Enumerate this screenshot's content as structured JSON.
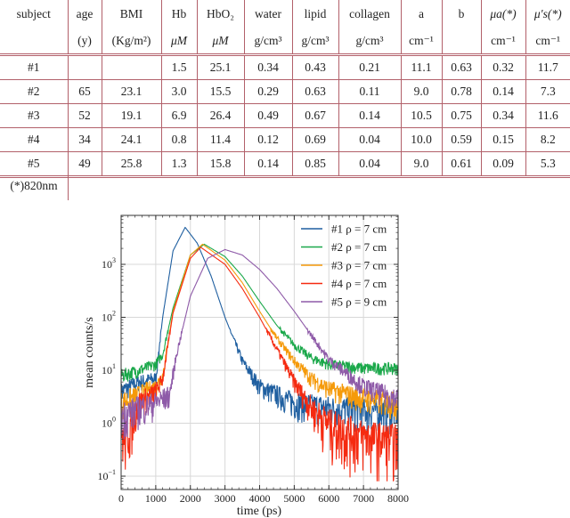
{
  "table": {
    "columns": [
      {
        "name": "subject",
        "unit": ""
      },
      {
        "name": "age",
        "unit": "(y)"
      },
      {
        "name": "BMI",
        "unit": "(Kg/m²)"
      },
      {
        "name": "Hb",
        "unit": "μM"
      },
      {
        "name": "HbO₂",
        "unit": "μM"
      },
      {
        "name": "water",
        "unit": "g/cm³"
      },
      {
        "name": "lipid",
        "unit": "g/cm³"
      },
      {
        "name": "collagen",
        "unit": "g/cm³"
      },
      {
        "name": "a",
        "unit": "cm⁻¹"
      },
      {
        "name": "b",
        "unit": ""
      },
      {
        "name": "μa(*)",
        "unit": "cm⁻¹"
      },
      {
        "name": "μ's(*)",
        "unit": "cm⁻¹"
      }
    ],
    "rows": [
      [
        "#1",
        "",
        "",
        "1.5",
        "25.1",
        "0.34",
        "0.43",
        "0.21",
        "11.1",
        "0.63",
        "0.32",
        "11.7"
      ],
      [
        "#2",
        "65",
        "23.1",
        "3.0",
        "15.5",
        "0.29",
        "0.63",
        "0.11",
        "9.0",
        "0.78",
        "0.14",
        "7.3"
      ],
      [
        "#3",
        "52",
        "19.1",
        "6.9",
        "26.4",
        "0.49",
        "0.67",
        "0.14",
        "10.5",
        "0.75",
        "0.34",
        "11.6"
      ],
      [
        "#4",
        "34",
        "24.1",
        "0.8",
        "11.4",
        "0.12",
        "0.69",
        "0.04",
        "10.0",
        "0.59",
        "0.15",
        "8.2"
      ],
      [
        "#5",
        "49",
        "25.8",
        "1.3",
        "15.8",
        "0.14",
        "0.85",
        "0.04",
        "9.0",
        "0.61",
        "0.09",
        "5.3"
      ]
    ],
    "footnote": "(*)820nm"
  },
  "chart_data": {
    "type": "line",
    "title": "",
    "xlabel": "time (ps)",
    "ylabel": "mean counts/s",
    "xlim": [
      0,
      8000
    ],
    "ylim": [
      0.05,
      8500
    ],
    "yscale": "log",
    "grid": true,
    "legend_position": "upper right",
    "x_ticks": [
      "0",
      "1000",
      "2000",
      "3000",
      "4000",
      "5000",
      "6000",
      "7000",
      "8000"
    ],
    "y_ticks": [
      "10^-1",
      "10^0",
      "10^1",
      "10^2",
      "10^3"
    ],
    "series": [
      {
        "name": "#1 ρ = 7 cm",
        "color": "#1f5fa0",
        "x": [
          0,
          500,
          1000,
          1200,
          1500,
          1850,
          2200,
          2600,
          3000,
          3500,
          4000,
          5000,
          6000,
          7000,
          8000
        ],
        "y": [
          4,
          6,
          7,
          100,
          1800,
          5000,
          2500,
          600,
          100,
          15,
          5,
          2.5,
          2,
          1.8,
          1.8
        ]
      },
      {
        "name": "#2 ρ = 7 cm",
        "color": "#1aa84a",
        "x": [
          0,
          500,
          1000,
          1200,
          1500,
          2000,
          2400,
          3000,
          3500,
          4000,
          4500,
          5000,
          5500,
          6000,
          7000,
          8000
        ],
        "y": [
          8,
          10,
          13,
          20,
          150,
          1500,
          2400,
          1400,
          600,
          200,
          70,
          30,
          17,
          13,
          11,
          11
        ]
      },
      {
        "name": "#3 ρ = 7 cm",
        "color": "#f59a0a",
        "x": [
          0,
          500,
          1000,
          1200,
          1500,
          2000,
          2350,
          3000,
          3500,
          4000,
          4500,
          5000,
          5500,
          6000,
          7000,
          8000
        ],
        "y": [
          2.5,
          3.5,
          5,
          8,
          130,
          1500,
          2400,
          1200,
          450,
          130,
          40,
          15,
          7,
          4.5,
          3,
          2.5
        ]
      },
      {
        "name": "#4 ρ = 7 cm",
        "color": "#f52a10",
        "x": [
          0,
          100,
          500,
          1000,
          1200,
          1500,
          2000,
          2300,
          3000,
          3500,
          4000,
          4500,
          5000,
          5500,
          6000,
          7000,
          8000
        ],
        "y": [
          0.7,
          0.5,
          2.5,
          4,
          7,
          120,
          1300,
          2100,
          1000,
          350,
          100,
          25,
          6,
          2,
          1,
          0.6,
          0.5
        ]
      },
      {
        "name": "#5 ρ = 9 cm",
        "color": "#8e5aa8",
        "x": [
          0,
          500,
          1000,
          1400,
          1600,
          2000,
          2500,
          3000,
          3500,
          4000,
          4500,
          5000,
          5500,
          6000,
          7000,
          8000
        ],
        "y": [
          1.5,
          2,
          2.5,
          3.5,
          20,
          250,
          1300,
          1900,
          1500,
          800,
          350,
          130,
          45,
          16,
          5,
          3
        ]
      }
    ]
  }
}
